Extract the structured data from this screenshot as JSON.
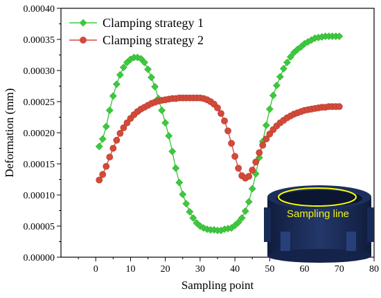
{
  "chart_data": {
    "type": "line",
    "xlabel": "Sampling point",
    "ylabel": "Deformation (mm)",
    "xlim": [
      -10,
      80
    ],
    "ylim": [
      0,
      0.0004
    ],
    "xticks": [
      "0",
      "10",
      "20",
      "30",
      "40",
      "50",
      "60",
      "70",
      "80"
    ],
    "yticks": [
      "0.00000",
      "0.00005",
      "0.00010",
      "0.00015",
      "0.00020",
      "0.00025",
      "0.00030",
      "0.00035",
      "0.00040"
    ],
    "grid": false,
    "legend_position": "top-left",
    "series": [
      {
        "name": "Clamping strategy 1",
        "color": "#3ec83e",
        "marker": "diamond",
        "x": [
          1,
          2,
          3,
          4,
          5,
          6,
          7,
          8,
          9,
          10,
          11,
          12,
          13,
          14,
          15,
          16,
          17,
          18,
          19,
          20,
          21,
          22,
          23,
          24,
          25,
          26,
          27,
          28,
          29,
          30,
          31,
          32,
          33,
          34,
          35,
          36,
          37,
          38,
          39,
          40,
          41,
          42,
          43,
          44,
          45,
          46,
          47,
          48,
          49,
          50,
          51,
          52,
          53,
          54,
          55,
          56,
          57,
          58,
          59,
          60,
          61,
          62,
          63,
          64,
          65,
          66,
          67,
          68,
          69,
          70
        ],
        "y": [
          0.000178,
          0.00019,
          0.00021,
          0.000236,
          0.000259,
          0.000278,
          0.000293,
          0.000305,
          0.000313,
          0.000318,
          0.000321,
          0.000321,
          0.000319,
          0.000313,
          0.000302,
          0.000289,
          0.000274,
          0.000255,
          0.000236,
          0.000216,
          0.000195,
          0.00017,
          0.000143,
          0.00012,
          0.000101,
          8.6e-05,
          7.3e-05,
          6.3e-05,
          5.5e-05,
          5e-05,
          4.7e-05,
          4.5e-05,
          4.4e-05,
          4.4e-05,
          4.3e-05,
          4.3e-05,
          4.5e-05,
          4.6e-05,
          4.7e-05,
          5.1e-05,
          5.6e-05,
          6.3e-05,
          7.4e-05,
          8.9e-05,
          0.00011,
          0.000134,
          0.00016,
          0.000186,
          0.000212,
          0.000238,
          0.00026,
          0.000276,
          0.00029,
          0.000303,
          0.000313,
          0.000322,
          0.000329,
          0.000334,
          0.000338,
          0.000343,
          0.000346,
          0.000349,
          0.000352,
          0.000353,
          0.000354,
          0.000355,
          0.000355,
          0.000355,
          0.000355,
          0.000355
        ]
      },
      {
        "name": "Clamping strategy 2",
        "color": "#d24a3a",
        "marker": "circle",
        "x": [
          1,
          2,
          3,
          4,
          5,
          6,
          7,
          8,
          9,
          10,
          11,
          12,
          13,
          14,
          15,
          16,
          17,
          18,
          19,
          20,
          21,
          22,
          23,
          24,
          25,
          26,
          27,
          28,
          29,
          30,
          31,
          32,
          33,
          34,
          35,
          36,
          37,
          38,
          39,
          40,
          41,
          42,
          43,
          44,
          45,
          46,
          47,
          48,
          49,
          50,
          51,
          52,
          53,
          54,
          55,
          56,
          57,
          58,
          59,
          60,
          61,
          62,
          63,
          64,
          65,
          66,
          67,
          68,
          69,
          70
        ],
        "y": [
          0.000124,
          0.000133,
          0.000146,
          0.000161,
          0.000175,
          0.000188,
          0.000199,
          0.000208,
          0.000216,
          0.000223,
          0.000229,
          0.000234,
          0.000238,
          0.000241,
          0.000244,
          0.000247,
          0.000249,
          0.000251,
          0.000252,
          0.000253,
          0.000254,
          0.000255,
          0.000255,
          0.000256,
          0.000256,
          0.000256,
          0.000256,
          0.000256,
          0.000256,
          0.000256,
          0.000255,
          0.000253,
          0.00025,
          0.000246,
          0.00024,
          0.000231,
          0.000219,
          0.000203,
          0.000183,
          0.000162,
          0.000143,
          0.000131,
          0.000127,
          0.00013,
          0.00014,
          0.000153,
          0.000168,
          0.00018,
          0.00019,
          0.000198,
          0.000205,
          0.000211,
          0.000216,
          0.00022,
          0.000224,
          0.000227,
          0.00023,
          0.000232,
          0.000234,
          0.000236,
          0.000237,
          0.000238,
          0.000239,
          0.00024,
          0.000241,
          0.000241,
          0.000242,
          0.000242,
          0.000242,
          0.000242
        ]
      }
    ],
    "inset": {
      "label": "Sampling line",
      "label_color": "#f2f21a",
      "ring_color": "#ffff00",
      "part_color": "#1c2f5c"
    }
  }
}
